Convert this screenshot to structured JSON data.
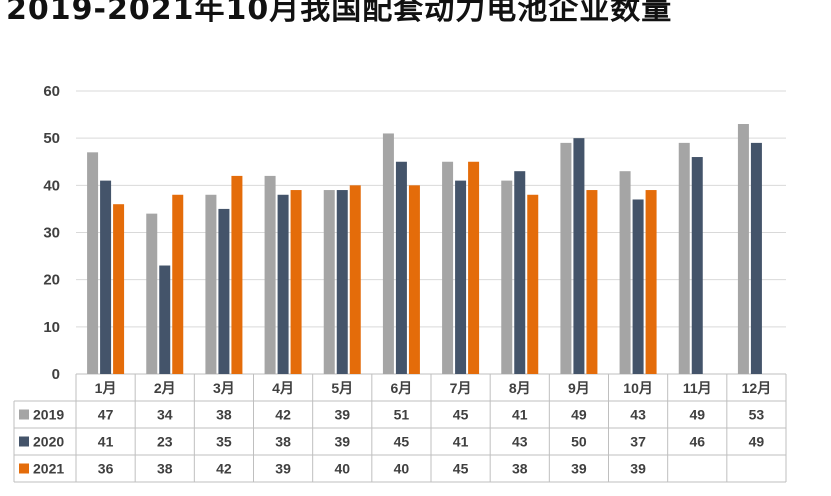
{
  "title": "2019-2021年10月我国配套动力电池企业数量",
  "chart_data": {
    "type": "bar",
    "title": "2019-2021年10月我国配套动力电池企业数量",
    "categories": [
      "1月",
      "2月",
      "3月",
      "4月",
      "5月",
      "6月",
      "7月",
      "8月",
      "9月",
      "10月",
      "11月",
      "12月"
    ],
    "ylim": [
      0,
      60
    ],
    "yticks": [
      0,
      10,
      20,
      30,
      40,
      50,
      60
    ],
    "grid": true,
    "legend": "data-table-left",
    "series": [
      {
        "name": "2019",
        "color": "#a5a5a5",
        "values": [
          47,
          34,
          38,
          42,
          39,
          51,
          45,
          41,
          49,
          43,
          49,
          53
        ]
      },
      {
        "name": "2020",
        "color": "#44546a",
        "values": [
          41,
          23,
          35,
          38,
          39,
          45,
          41,
          43,
          50,
          37,
          46,
          49
        ]
      },
      {
        "name": "2021",
        "color": "#e46c0a",
        "values": [
          36,
          38,
          42,
          39,
          40,
          40,
          45,
          38,
          39,
          39,
          null,
          null
        ]
      }
    ]
  }
}
